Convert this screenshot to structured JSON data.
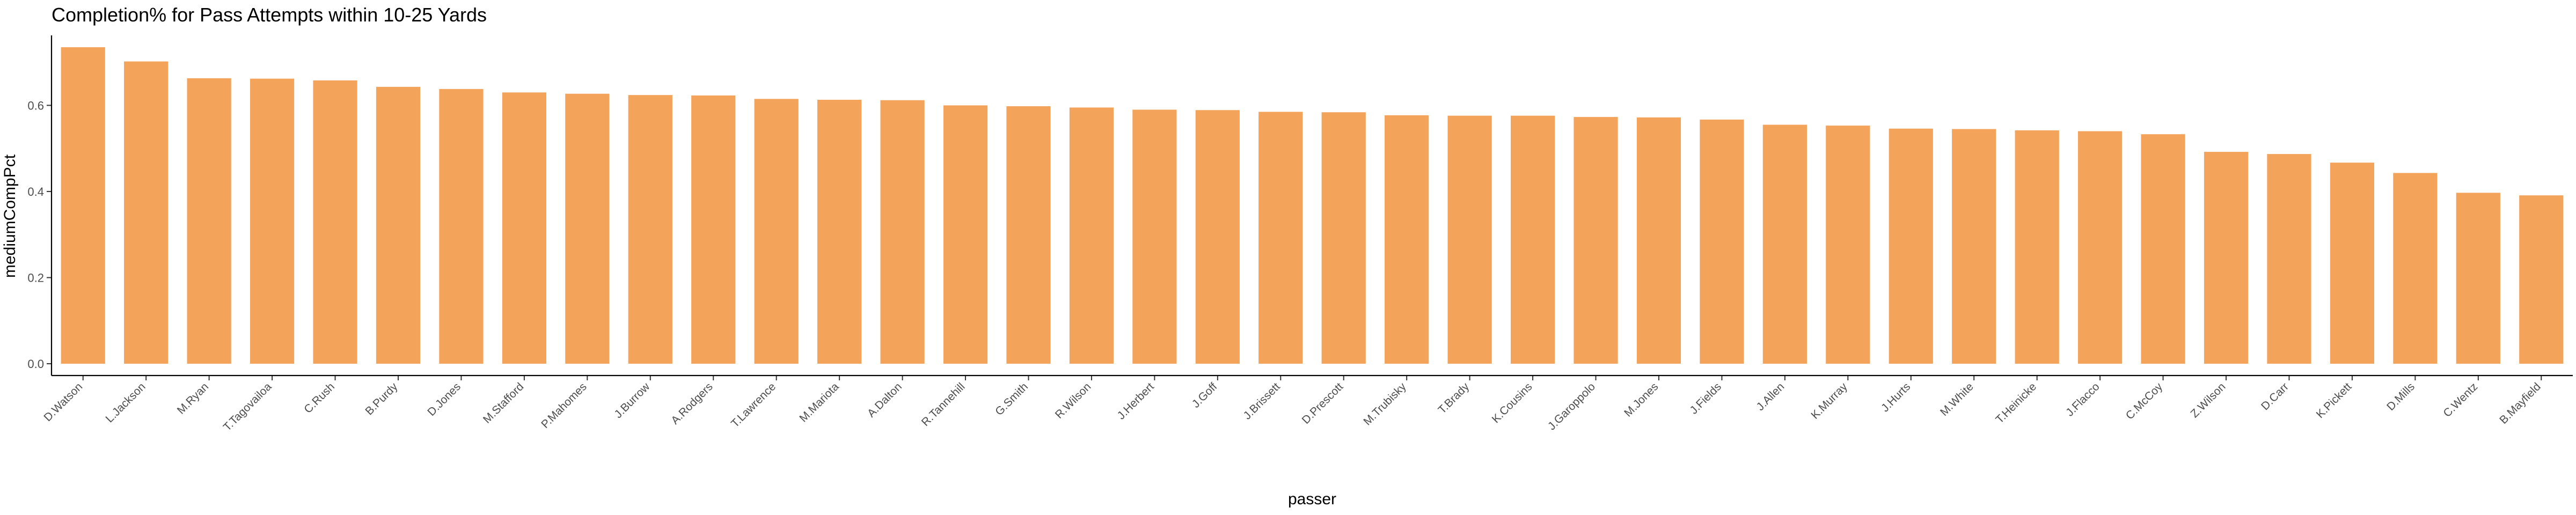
{
  "chart_data": {
    "type": "bar",
    "title": "Completion% for Pass Attempts within 10-25 Yards",
    "xlabel": "passer",
    "ylabel": "mediumCompPct",
    "ylim": [
      0,
      0.75
    ],
    "yticks": [
      "0.0",
      "0.2",
      "0.4",
      "0.6"
    ],
    "grid": false,
    "bar_color": "#F4A35A",
    "categories": [
      "D.Watson",
      "L.Jackson",
      "M.Ryan",
      "T.Tagovailoa",
      "C.Rush",
      "B.Purdy",
      "D.Jones",
      "M.Stafford",
      "P.Mahomes",
      "J.Burrow",
      "A.Rodgers",
      "T.Lawrence",
      "M.Mariota",
      "A.Dalton",
      "R.Tannehill",
      "G.Smith",
      "R.Wilson",
      "J.Herbert",
      "J.Goff",
      "J.Brissett",
      "D.Prescott",
      "M.Trubisky",
      "T.Brady",
      "K.Cousins",
      "J.Garoppolo",
      "M.Jones",
      "J.Fields",
      "J.Allen",
      "K.Murray",
      "J.Hurts",
      "M.White",
      "T.Heinicke",
      "J.Flacco",
      "C.McCoy",
      "Z.Wilson",
      "D.Carr",
      "K.Pickett",
      "D.Mills",
      "C.Wentz",
      "B.Mayfield"
    ],
    "values": [
      0.735,
      0.702,
      0.663,
      0.662,
      0.658,
      0.643,
      0.638,
      0.63,
      0.627,
      0.624,
      0.623,
      0.615,
      0.613,
      0.612,
      0.6,
      0.598,
      0.595,
      0.59,
      0.589,
      0.585,
      0.584,
      0.577,
      0.576,
      0.576,
      0.573,
      0.572,
      0.567,
      0.555,
      0.553,
      0.546,
      0.545,
      0.542,
      0.54,
      0.533,
      0.492,
      0.487,
      0.467,
      0.443,
      0.397,
      0.391
    ]
  }
}
